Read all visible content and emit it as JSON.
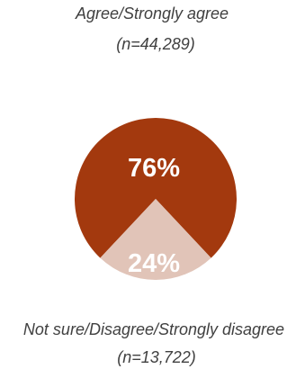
{
  "chart_data": {
    "type": "pie",
    "slices": [
      {
        "label": "Agree/Strongly agree",
        "count_label": "(n=44,289)",
        "value": 76,
        "display": "76%",
        "color": "#A3390E"
      },
      {
        "label": "Not sure/Disagree/Strongly disagree",
        "count_label": "(n=13,722)",
        "value": 24,
        "display": "24%",
        "color": "#E1C4B8"
      }
    ]
  }
}
